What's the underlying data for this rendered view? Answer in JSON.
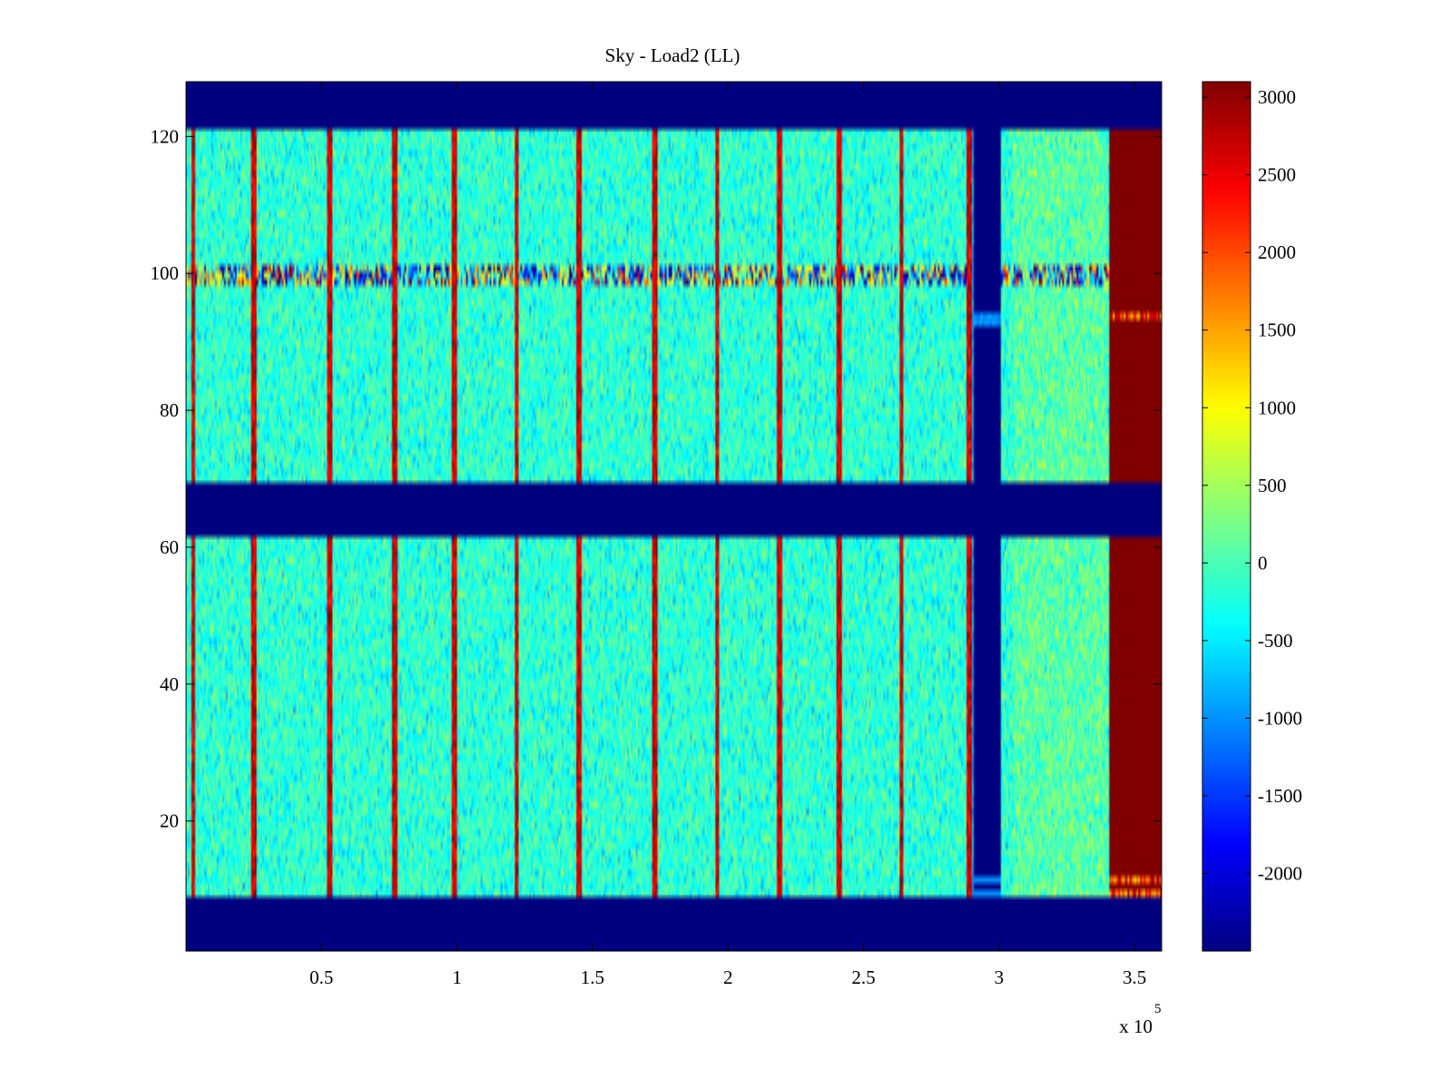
{
  "chart_data": {
    "type": "heatmap",
    "title": "Sky - Load2 (LL)",
    "xlabel": "",
    "ylabel": "",
    "x_exponent_label": "x 10",
    "x_exponent_power": "5",
    "xlim": [
      0,
      3.6
    ],
    "ylim": [
      1,
      128
    ],
    "x_ticks": [
      0.5,
      1,
      1.5,
      2,
      2.5,
      3,
      3.5
    ],
    "x_tick_labels": [
      "0.5",
      "1",
      "1.5",
      "2",
      "2.5",
      "3",
      "3.5"
    ],
    "y_ticks": [
      20,
      40,
      60,
      80,
      100,
      120
    ],
    "y_tick_labels": [
      "20",
      "40",
      "60",
      "80",
      "100",
      "120"
    ],
    "colormap": "jet",
    "clim": [
      -2500,
      3100
    ],
    "colorbar_ticks": [
      3000,
      2500,
      2000,
      1500,
      1000,
      500,
      0,
      -500,
      -1000,
      -1500,
      -2000
    ],
    "colorbar_tick_labels": [
      "3000",
      "2500",
      "2000",
      "1500",
      "1000",
      "500",
      "0",
      "-500",
      "-1000",
      "-1500",
      "-2000"
    ],
    "masked_channel_bands": [
      [
        1,
        8
      ],
      [
        62,
        69
      ],
      [
        122,
        128
      ]
    ],
    "noise_mean": -150,
    "noise_spread": 500,
    "bright_channel_rows": [
      99,
      101
    ],
    "spike_columns_x": [
      0.025,
      0.25,
      0.53,
      0.77,
      0.99,
      1.22,
      1.45,
      1.73,
      1.96,
      2.19,
      2.41,
      2.64,
      2.89
    ],
    "gap_region_x": [
      2.9,
      3.01
    ],
    "gap_blip_row": 94,
    "saturated_region_x": [
      3.41,
      3.6
    ],
    "saturated_value": 3100
  }
}
